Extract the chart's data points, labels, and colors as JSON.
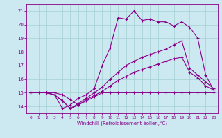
{
  "title": "",
  "xlabel": "Windchill (Refroidissement éolien,°C)",
  "ylabel": "",
  "bg_color": "#cce8f0",
  "line_color": "#880088",
  "xlim": [
    -0.5,
    23.5
  ],
  "ylim": [
    13.5,
    21.5
  ],
  "xticks": [
    0,
    1,
    2,
    3,
    4,
    5,
    6,
    7,
    8,
    9,
    10,
    11,
    12,
    13,
    14,
    15,
    16,
    17,
    18,
    19,
    20,
    21,
    22,
    23
  ],
  "yticks": [
    14,
    15,
    16,
    17,
    18,
    19,
    20,
    21
  ],
  "series": [
    {
      "x": [
        0,
        1,
        2,
        3,
        4,
        5,
        6,
        7,
        8,
        9,
        10,
        11,
        12,
        13,
        14,
        15,
        16,
        17,
        18,
        19,
        20,
        21,
        22,
        23
      ],
      "y": [
        15.0,
        15.0,
        15.0,
        15.0,
        14.85,
        14.5,
        14.1,
        14.4,
        14.7,
        15.0,
        15.0,
        15.0,
        15.0,
        15.0,
        15.0,
        15.0,
        15.0,
        15.0,
        15.0,
        15.0,
        15.0,
        15.0,
        15.0,
        15.0
      ]
    },
    {
      "x": [
        0,
        2,
        3,
        4,
        5,
        6,
        7,
        8,
        9,
        10,
        11,
        12,
        13,
        14,
        15,
        16,
        17,
        18,
        19,
        20,
        21,
        22,
        23
      ],
      "y": [
        15.0,
        15.0,
        14.85,
        14.4,
        13.85,
        14.1,
        14.5,
        14.8,
        15.1,
        15.5,
        15.9,
        16.2,
        16.5,
        16.7,
        16.9,
        17.1,
        17.3,
        17.5,
        17.6,
        16.5,
        16.1,
        15.5,
        15.2
      ]
    },
    {
      "x": [
        0,
        2,
        3,
        4,
        5,
        6,
        7,
        8,
        9,
        10,
        11,
        12,
        13,
        14,
        15,
        16,
        17,
        18,
        19,
        20,
        21,
        22,
        23
      ],
      "y": [
        15.0,
        15.0,
        14.85,
        14.4,
        13.85,
        14.2,
        14.6,
        15.0,
        15.4,
        16.0,
        16.5,
        17.0,
        17.3,
        17.6,
        17.8,
        18.0,
        18.2,
        18.5,
        18.8,
        16.8,
        16.3,
        15.8,
        15.3
      ]
    },
    {
      "x": [
        0,
        2,
        3,
        4,
        5,
        6,
        7,
        8,
        9,
        10,
        11,
        12,
        13,
        14,
        15,
        16,
        17,
        18,
        19,
        20,
        21,
        22,
        23
      ],
      "y": [
        15.0,
        15.0,
        14.85,
        13.85,
        14.1,
        14.6,
        14.85,
        15.3,
        17.0,
        18.3,
        20.5,
        20.4,
        21.0,
        20.3,
        20.4,
        20.2,
        20.2,
        19.9,
        20.2,
        19.8,
        19.0,
        16.3,
        15.2
      ]
    }
  ]
}
